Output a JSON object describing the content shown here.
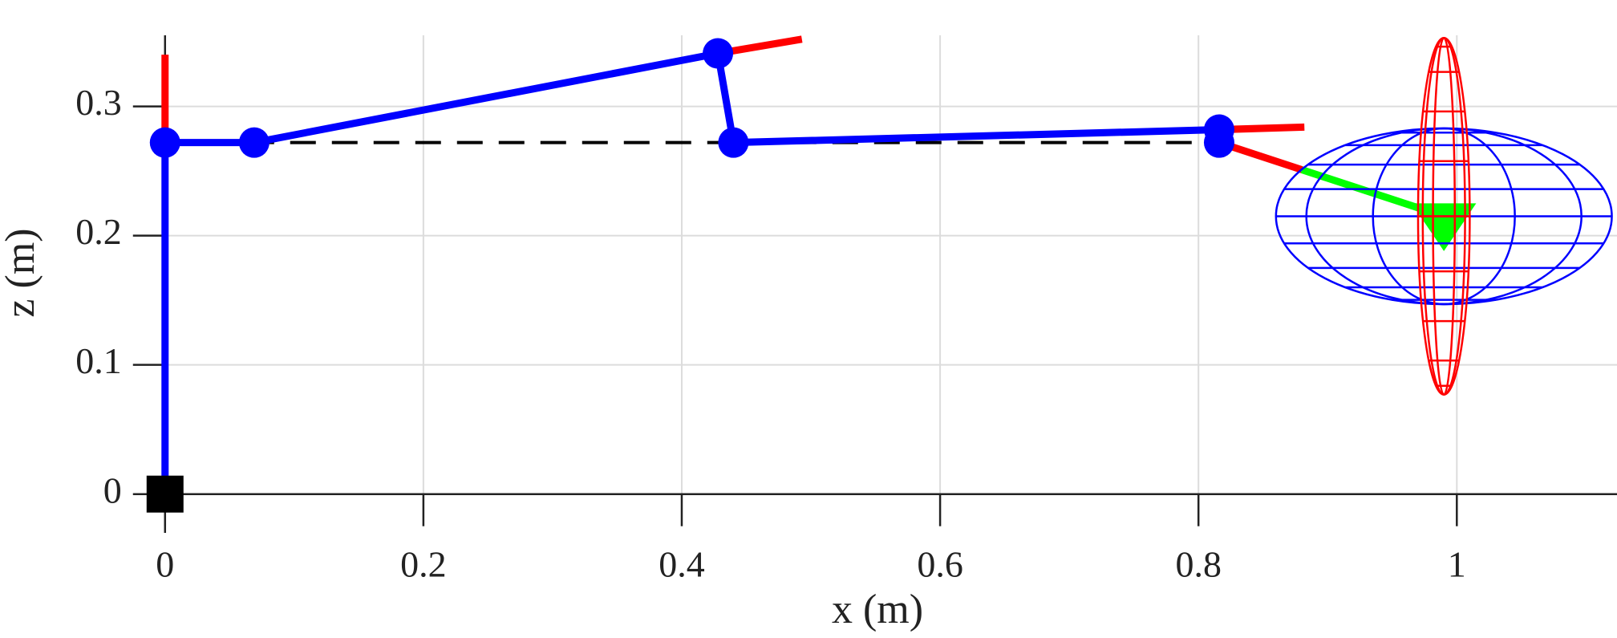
{
  "chart_data": {
    "type": "line",
    "xlabel": "x (m)",
    "ylabel": "z (m)",
    "xlim": [
      -0.016,
      1.124
    ],
    "ylim": [
      -0.03,
      0.355
    ],
    "xticks": [
      0,
      0.2,
      0.4,
      0.6,
      0.8,
      1
    ],
    "yticks": [
      0,
      0.1,
      0.2,
      0.3
    ],
    "grid": true,
    "series": [
      {
        "color": "#000000",
        "dash": true,
        "x": [
          0,
          0.816
        ],
        "values": [
          0.272,
          0.272
        ]
      },
      {
        "color": "#ff0000",
        "x": [
          0,
          0
        ],
        "values": [
          0.272,
          0.34
        ]
      },
      {
        "color": "#ff0000",
        "x": [
          0.428,
          0.493
        ],
        "values": [
          0.341,
          0.352
        ]
      },
      {
        "color": "#ff0000",
        "x": [
          0.816,
          0.882
        ],
        "values": [
          0.282,
          0.284
        ]
      },
      {
        "color": "#ff0000",
        "x": [
          0.816,
          0.88
        ],
        "values": [
          0.272,
          0.251
        ]
      },
      {
        "color": "#00ff00",
        "x": [
          0.88,
          0.99
        ],
        "values": [
          0.251,
          0.215
        ]
      },
      {
        "color": "#00ff00",
        "fill": true,
        "x": [
          0.965,
          1.015,
          0.99
        ],
        "values": [
          0.225,
          0.225,
          0.188
        ]
      },
      {
        "color": "#0000ff",
        "markers": "circle",
        "x": [
          0,
          0,
          0.069,
          0.428,
          0.44,
          0.816,
          0.816
        ],
        "values": [
          0,
          0.272,
          0.272,
          0.341,
          0.272,
          0.282,
          0.272
        ]
      },
      {
        "color": "#000000",
        "markers": "square",
        "x": [
          0
        ],
        "values": [
          0
        ]
      }
    ],
    "ellipsoids": [
      {
        "color": "#0000ff",
        "center": [
          0.99,
          0.215
        ],
        "radii": [
          0.13,
          0.068
        ]
      },
      {
        "color": "#ff0000",
        "center": [
          0.99,
          0.215
        ],
        "radii": [
          0.02,
          0.138
        ]
      }
    ]
  }
}
